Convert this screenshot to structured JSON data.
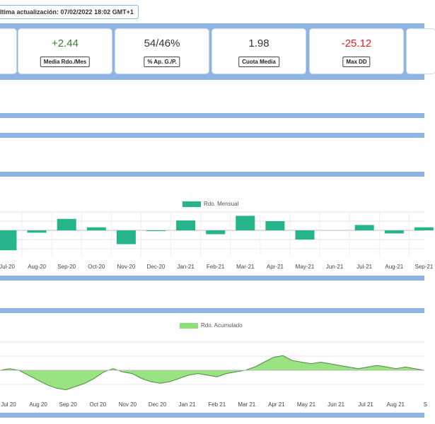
{
  "header": {
    "last_update": "ltima actualización: 07/02/2022 18:02 GMT+1"
  },
  "stats": [
    {
      "value": "+2.44",
      "label": "Media Rdo./Mes",
      "color": "#3a7d2c"
    },
    {
      "value": "54/46%",
      "label": "% Ap. G./P.",
      "color": "#333333"
    },
    {
      "value": "1.98",
      "label": "Cuota Media",
      "color": "#333333"
    },
    {
      "value": "-25.12",
      "label": "Max DD",
      "color": "#e02020"
    }
  ],
  "chart_data": [
    {
      "type": "bar",
      "legend": "Rdo. Mensual",
      "color": "#26b48a",
      "categories": [
        "Jul-20",
        "Aug-20",
        "Sep-20",
        "Oct-20",
        "Nov-20",
        "Dec-20",
        "Jan-21",
        "Feb-21",
        "Mar-21",
        "Apr-21",
        "May-21",
        "Jun-21",
        "Jul-21",
        "Aug-21",
        "Sep-21"
      ],
      "series": [
        {
          "name": "Rdo. Mensual",
          "values": [
            -13,
            -1.5,
            7.5,
            2,
            -9,
            -0.5,
            6.5,
            -2.5,
            9.5,
            6,
            -6,
            0,
            3.5,
            -2,
            2
          ]
        }
      ],
      "ylim": [
        -15,
        12
      ]
    },
    {
      "type": "area",
      "legend": "Rdo. Acumulado",
      "color": "#8ee076",
      "x_labels": [
        "Jul 20",
        "Aug 20",
        "Sep 20",
        "Oct 20",
        "Nov 20",
        "Dec 20",
        "Jan 21",
        "Feb 21",
        "Mar 21",
        "Apr 21",
        "May 21",
        "Jun 21",
        "Jul 21",
        "Aug 21",
        "S"
      ],
      "series": [
        {
          "name": "Rdo. Acumulado",
          "values": [
            0,
            1,
            0,
            -3,
            -6,
            -9,
            -11,
            -12,
            -10,
            -8,
            -5,
            -1,
            1,
            -1,
            -2,
            -5,
            -7,
            -8,
            -7,
            -5,
            -3,
            -2,
            -3,
            -4,
            -2,
            -1,
            0,
            2,
            5,
            8,
            9,
            6,
            5,
            4,
            5,
            4,
            3,
            2,
            1,
            2,
            3,
            2,
            1,
            2,
            1,
            0
          ]
        }
      ],
      "ylim": [
        -14,
        12
      ]
    }
  ]
}
